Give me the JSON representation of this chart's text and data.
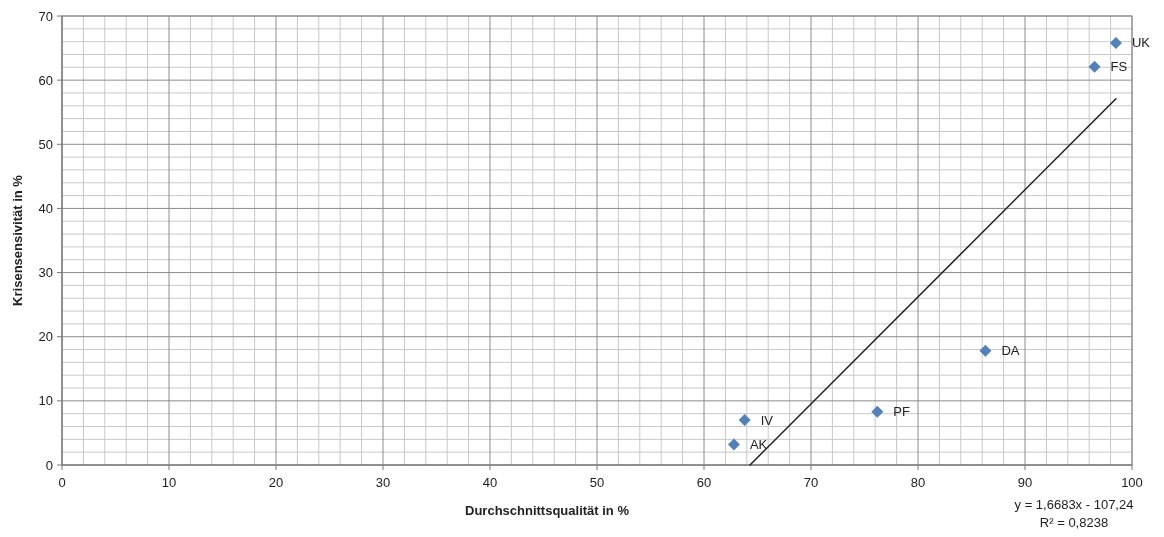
{
  "chart_data": {
    "type": "scatter",
    "xlabel": "Durchschnittsqualität  in %",
    "ylabel": "Krisensensivität  in %",
    "xlim": [
      0,
      100
    ],
    "xticks": [
      0,
      10,
      20,
      30,
      40,
      50,
      60,
      70,
      80,
      90,
      100
    ],
    "ylim": [
      0,
      70
    ],
    "yticks": [
      0,
      10,
      20,
      30,
      40,
      50,
      60,
      70
    ],
    "grid": true,
    "series": [
      {
        "marker": "diamond",
        "color": "#4f81bd",
        "x": [
          98.5,
          96.5,
          86.3,
          76.2,
          63.8,
          62.8
        ],
        "values": [
          65.8,
          62.1,
          17.8,
          8.3,
          7.0,
          3.2
        ]
      },
      {
        "type": "line",
        "color": "#1f1f1f",
        "x": [
          64.3,
          98.5
        ],
        "values": [
          0,
          57.1
        ]
      }
    ],
    "annotations": [
      {
        "text": "UK",
        "x": 98.5,
        "y": 65.8
      },
      {
        "text": "FS",
        "x": 96.5,
        "y": 62.1
      },
      {
        "text": "DA",
        "x": 86.3,
        "y": 17.8
      },
      {
        "text": "PF",
        "x": 76.2,
        "y": 8.3
      },
      {
        "text": "IV",
        "x": 63.8,
        "y": 7.0
      },
      {
        "text": "AK",
        "x": 62.8,
        "y": 3.2
      },
      "y = 1,6683x - 107,24",
      "R² = 0,8238"
    ]
  }
}
